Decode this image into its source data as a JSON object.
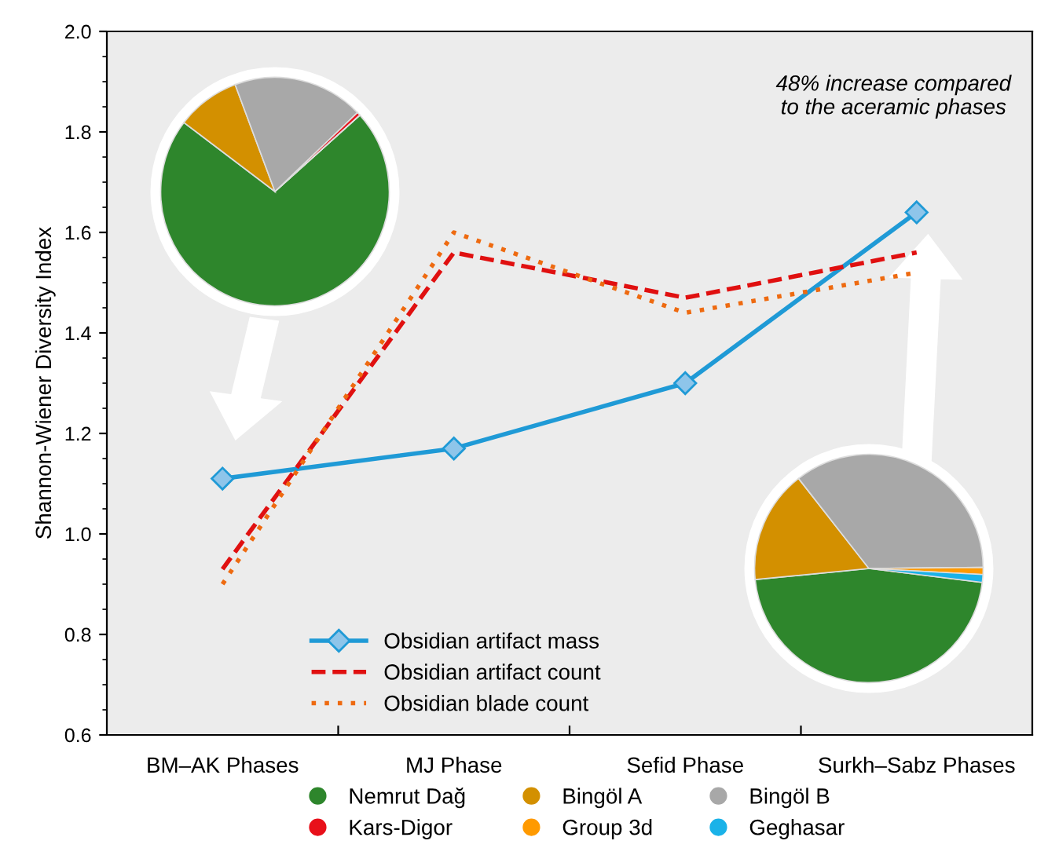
{
  "chart_data": [
    {
      "type": "line",
      "ylabel": "Shannon-Wiener Diversity Index",
      "categories": [
        "BM–AK Phases",
        "MJ Phase",
        "Sefid Phase",
        "Surkh–Sabz Phases"
      ],
      "ylim": [
        0.6,
        2.0
      ],
      "yticks": [
        {
          "value": 0.6,
          "label": "0.6"
        },
        {
          "value": 0.8,
          "label": "0.8"
        },
        {
          "value": 1.0,
          "label": "1.0"
        },
        {
          "value": 1.2,
          "label": "1.2"
        },
        {
          "value": 1.4,
          "label": "1.4"
        },
        {
          "value": 1.6,
          "label": "1.6"
        },
        {
          "value": 1.8,
          "label": "1.8"
        },
        {
          "value": 2.0,
          "label": "2.0"
        }
      ],
      "grid": false,
      "legend": "bottom left",
      "annotations": [
        "48% increase compared\nto the aceramic phases"
      ],
      "series": [
        {
          "name": "Obsidian artifact mass",
          "color": "#1f9ad6",
          "values": [
            1.11,
            1.17,
            1.3,
            1.64
          ],
          "marker": "diamond",
          "line_style": "solid"
        },
        {
          "name": "Obsidian artifact count",
          "color": "#e01010",
          "values": [
            0.93,
            1.56,
            1.47,
            1.56
          ],
          "marker": "none",
          "line_style": "dashed"
        },
        {
          "name": "Obsidian blade count",
          "color": "#ee6a10",
          "values": [
            0.9,
            1.6,
            1.44,
            1.52
          ],
          "marker": "none",
          "line_style": "dotted"
        }
      ]
    },
    {
      "type": "pie",
      "legend": "bottom",
      "categories": [
        "Nemrut Dağ",
        "Bingöl A",
        "Bingöl B",
        "Kars-Digor",
        "Group 3d",
        "Geghasar"
      ],
      "colors": [
        "#2e862c",
        "#d39000",
        "#a8a8a8",
        "#e8101a",
        "#ff9a00",
        "#1ab2e8"
      ],
      "series": [
        {
          "values": [
            72,
            9,
            18.5,
            0.5,
            0,
            0
          ]
        },
        {
          "values": [
            46.5,
            16,
            35.4,
            0,
            1,
            1.1
          ]
        }
      ]
    }
  ]
}
